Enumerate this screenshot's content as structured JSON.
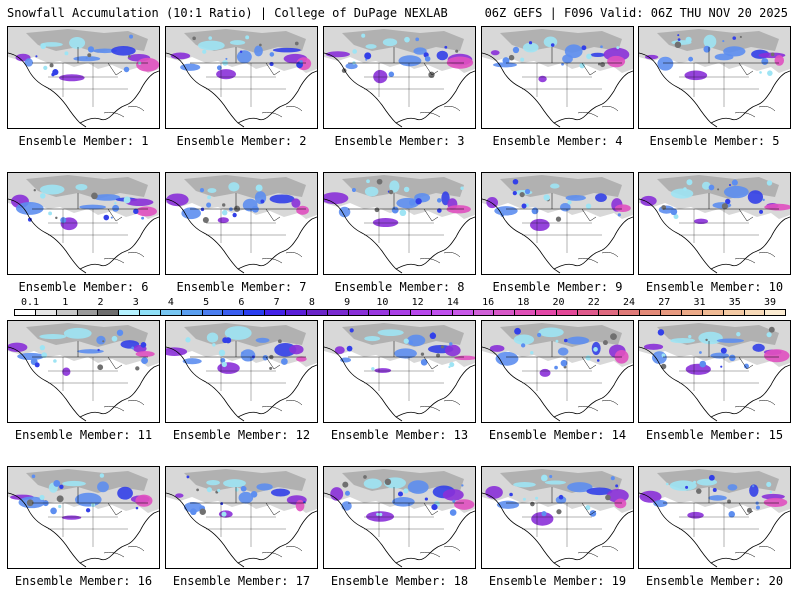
{
  "header": {
    "title_left": "Snowfall Accumulation (10:1 Ratio) | College of DuPage NEXLAB",
    "title_right": "06Z GEFS | F096 Valid: 06Z THU NOV 20 2025"
  },
  "panels": [
    {
      "label": "Ensemble Member: 1"
    },
    {
      "label": "Ensemble Member: 2"
    },
    {
      "label": "Ensemble Member: 3"
    },
    {
      "label": "Ensemble Member: 4"
    },
    {
      "label": "Ensemble Member: 5"
    },
    {
      "label": "Ensemble Member: 6"
    },
    {
      "label": "Ensemble Member: 7"
    },
    {
      "label": "Ensemble Member: 8"
    },
    {
      "label": "Ensemble Member: 9"
    },
    {
      "label": "Ensemble Member: 10"
    },
    {
      "label": "Ensemble Member: 11"
    },
    {
      "label": "Ensemble Member: 12"
    },
    {
      "label": "Ensemble Member: 13"
    },
    {
      "label": "Ensemble Member: 14"
    },
    {
      "label": "Ensemble Member: 15"
    },
    {
      "label": "Ensemble Member: 16"
    },
    {
      "label": "Ensemble Member: 17"
    },
    {
      "label": "Ensemble Member: 18"
    },
    {
      "label": "Ensemble Member: 19"
    },
    {
      "label": "Ensemble Member: 20"
    }
  ],
  "colorbar": {
    "labels": [
      "0.1",
      "1",
      "2",
      "3",
      "4",
      "5",
      "6",
      "7",
      "8",
      "9",
      "10",
      "12",
      "14",
      "16",
      "18",
      "20",
      "22",
      "24",
      "27",
      "31",
      "35",
      "39"
    ],
    "colors": [
      "#ffffff",
      "#e6e6e6",
      "#c8c8c8",
      "#9a9a9a",
      "#6e6e6e",
      "#b5f2ff",
      "#8fe0f7",
      "#77c6f2",
      "#5a9ff0",
      "#4b7ef0",
      "#3a5ef0",
      "#2a3ef0",
      "#4422e8",
      "#5a1ed8",
      "#6a24c8",
      "#7a2ad0",
      "#8a30d8",
      "#9a38e0",
      "#aa40e6",
      "#b848ec",
      "#c050ee",
      "#c858e8",
      "#d060d8",
      "#d858c8",
      "#e050b8",
      "#e448a8",
      "#e44898",
      "#e05a8c",
      "#e06a80",
      "#e07a78",
      "#e48a78",
      "#e89a80",
      "#ecaa88",
      "#f0ba94",
      "#f4caa4",
      "#f8dab8",
      "#fcecd2"
    ]
  },
  "map_colors": {
    "land_gray_light": "#d8d8d8",
    "land_gray": "#a8a8a8",
    "land_gray_dark": "#707070",
    "snow_light": "#9ee4f4",
    "snow_mid": "#5d8ef0",
    "snow_heavy": "#3340e8",
    "snow_purple": "#8a30d8",
    "snow_magenta": "#e050c0",
    "coast": "#000000"
  }
}
